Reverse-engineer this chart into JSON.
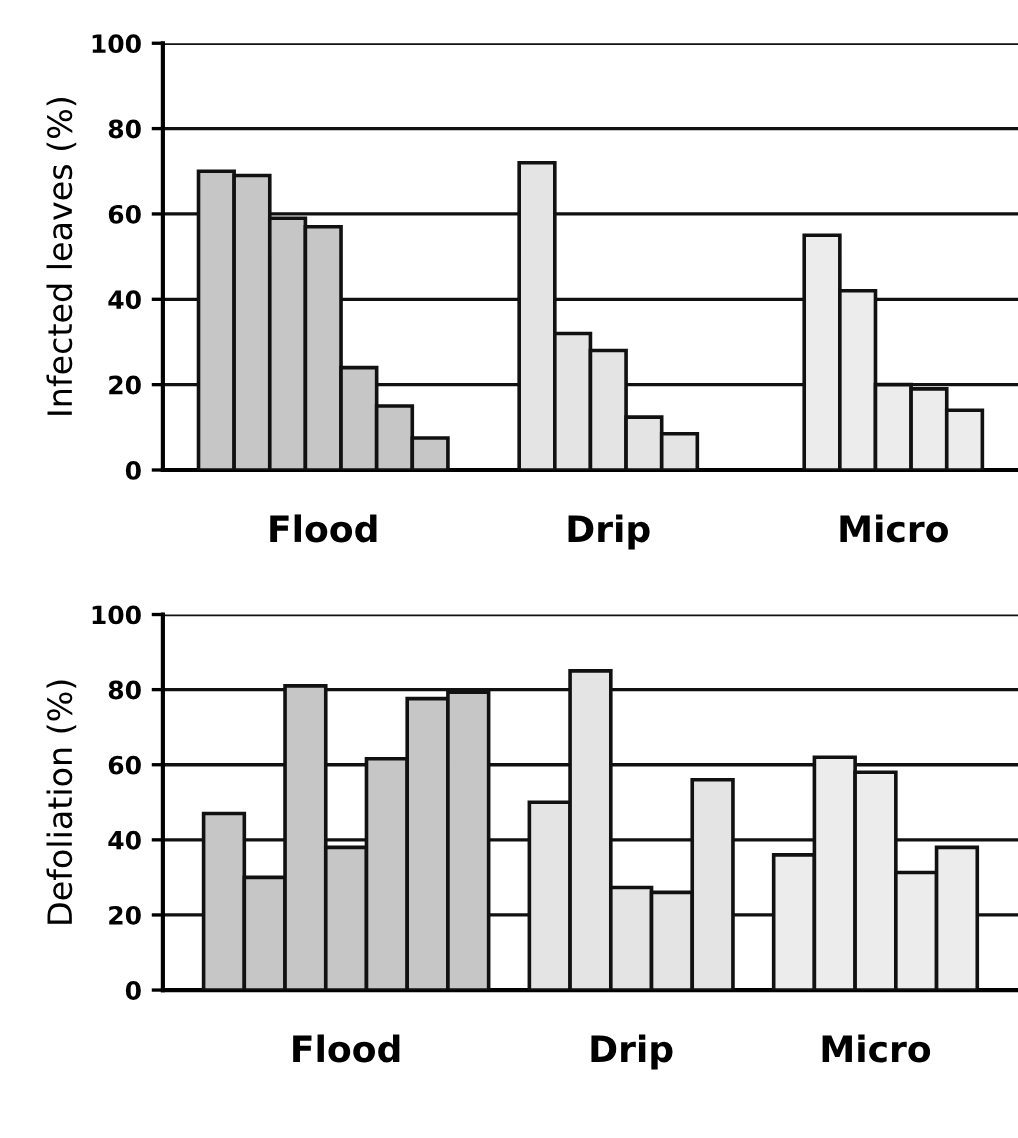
{
  "chart_data": [
    {
      "type": "bar",
      "ylabel": "Infected leaves (%)",
      "categories": [
        null,
        null,
        null,
        "Flood",
        null,
        null,
        null,
        null,
        null,
        null,
        null,
        "Drip",
        null,
        null,
        null,
        null,
        null,
        null,
        null,
        "Micro",
        null,
        null
      ],
      "values": [
        70,
        69,
        59,
        57,
        24,
        15,
        7.5,
        null,
        null,
        72,
        32,
        28,
        12.4,
        8.5,
        null,
        null,
        null,
        55,
        42,
        20,
        19,
        14
      ],
      "colors": [
        "#c6c6c6",
        "#c6c6c6",
        "#c6c6c6",
        "#c6c6c6",
        "#c6c6c6",
        "#c6c6c6",
        "#c6c6c6",
        null,
        null,
        "#e4e4e4",
        "#e4e4e4",
        "#e4e4e4",
        "#e4e4e4",
        "#e4e4e4",
        null,
        null,
        null,
        "#ececec",
        "#ececec",
        "#ececec",
        "#ececec",
        "#ececec"
      ],
      "ylim": [
        0,
        100
      ],
      "yticks": [
        0,
        20,
        40,
        60,
        80,
        100
      ],
      "grid": "y"
    },
    {
      "type": "bar",
      "ylabel": "Defoliation (%)",
      "categories": [
        null,
        null,
        null,
        "Flood",
        null,
        null,
        null,
        null,
        null,
        null,
        "Drip",
        null,
        null,
        null,
        null,
        null,
        "Micro",
        null,
        null
      ],
      "values": [
        47,
        30,
        81,
        38,
        61.6,
        77.6,
        79.3,
        null,
        50,
        85,
        27.3,
        26,
        56,
        null,
        36,
        62,
        58,
        31.3,
        38
      ],
      "colors": [
        "#c6c6c6",
        "#c6c6c6",
        "#c6c6c6",
        "#c6c6c6",
        "#c6c6c6",
        "#c6c6c6",
        "#c6c6c6",
        null,
        "#e4e4e4",
        "#e4e4e4",
        "#e4e4e4",
        "#e4e4e4",
        "#e4e4e4",
        null,
        "#ececec",
        "#ececec",
        "#ececec",
        "#ececec",
        "#ececec"
      ],
      "ylim": [
        0,
        100
      ],
      "yticks": [
        0,
        20,
        40,
        60,
        80,
        100
      ],
      "grid": "y"
    }
  ]
}
